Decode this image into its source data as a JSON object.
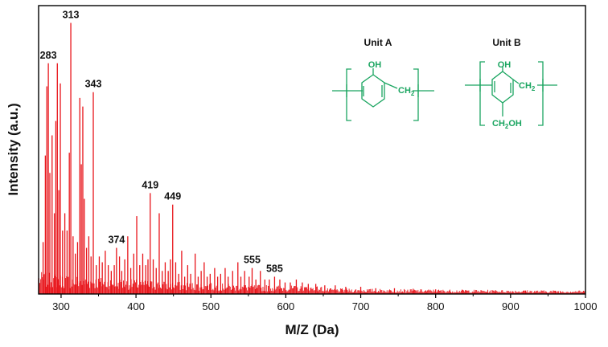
{
  "chart_data": {
    "type": "bar",
    "xlabel": "M/Z (Da)",
    "ylabel": "Intensity (a.u.)",
    "xlim": [
      270,
      1000
    ],
    "ylim": [
      0,
      1.0
    ],
    "xticks": [
      300,
      400,
      500,
      600,
      700,
      800,
      900,
      1000
    ],
    "y_tick_labels": false,
    "grid": false,
    "color": "#e8141a",
    "annotated_peaks": [
      {
        "x": 283,
        "y": 0.8,
        "label": "283"
      },
      {
        "x": 313,
        "y": 0.94,
        "label": "313"
      },
      {
        "x": 343,
        "y": 0.7,
        "label": "343"
      },
      {
        "x": 374,
        "y": 0.16,
        "label": "374"
      },
      {
        "x": 419,
        "y": 0.35,
        "label": "419"
      },
      {
        "x": 449,
        "y": 0.31,
        "label": "449"
      },
      {
        "x": 555,
        "y": 0.09,
        "label": "555"
      },
      {
        "x": 585,
        "y": 0.06,
        "label": "585"
      }
    ],
    "major_peaks": [
      {
        "x": 276,
        "y": 0.18
      },
      {
        "x": 279,
        "y": 0.48
      },
      {
        "x": 281,
        "y": 0.72
      },
      {
        "x": 285,
        "y": 0.42
      },
      {
        "x": 288,
        "y": 0.55
      },
      {
        "x": 291,
        "y": 0.28
      },
      {
        "x": 293,
        "y": 0.6
      },
      {
        "x": 295,
        "y": 0.8
      },
      {
        "x": 297,
        "y": 0.36
      },
      {
        "x": 299,
        "y": 0.73
      },
      {
        "x": 302,
        "y": 0.22
      },
      {
        "x": 305,
        "y": 0.28
      },
      {
        "x": 308,
        "y": 0.22
      },
      {
        "x": 311,
        "y": 0.49
      },
      {
        "x": 316,
        "y": 0.2
      },
      {
        "x": 319,
        "y": 0.14
      },
      {
        "x": 322,
        "y": 0.18
      },
      {
        "x": 325,
        "y": 0.68
      },
      {
        "x": 327,
        "y": 0.45
      },
      {
        "x": 329,
        "y": 0.65
      },
      {
        "x": 331,
        "y": 0.33
      },
      {
        "x": 334,
        "y": 0.16
      },
      {
        "x": 337,
        "y": 0.2
      },
      {
        "x": 340,
        "y": 0.13
      },
      {
        "x": 347,
        "y": 0.1
      },
      {
        "x": 351,
        "y": 0.13
      },
      {
        "x": 355,
        "y": 0.11
      },
      {
        "x": 359,
        "y": 0.15
      },
      {
        "x": 363,
        "y": 0.1
      },
      {
        "x": 367,
        "y": 0.08
      },
      {
        "x": 371,
        "y": 0.1
      },
      {
        "x": 378,
        "y": 0.13
      },
      {
        "x": 381,
        "y": 0.08
      },
      {
        "x": 385,
        "y": 0.12
      },
      {
        "x": 389,
        "y": 0.2
      },
      {
        "x": 393,
        "y": 0.09
      },
      {
        "x": 397,
        "y": 0.14
      },
      {
        "x": 401,
        "y": 0.27
      },
      {
        "x": 405,
        "y": 0.1
      },
      {
        "x": 409,
        "y": 0.14
      },
      {
        "x": 413,
        "y": 0.1
      },
      {
        "x": 416,
        "y": 0.12
      },
      {
        "x": 423,
        "y": 0.12
      },
      {
        "x": 427,
        "y": 0.09
      },
      {
        "x": 431,
        "y": 0.28
      },
      {
        "x": 435,
        "y": 0.08
      },
      {
        "x": 439,
        "y": 0.11
      },
      {
        "x": 443,
        "y": 0.08
      },
      {
        "x": 446,
        "y": 0.12
      },
      {
        "x": 453,
        "y": 0.11
      },
      {
        "x": 457,
        "y": 0.07
      },
      {
        "x": 461,
        "y": 0.15
      },
      {
        "x": 465,
        "y": 0.06
      },
      {
        "x": 469,
        "y": 0.1
      },
      {
        "x": 473,
        "y": 0.07
      },
      {
        "x": 479,
        "y": 0.14
      },
      {
        "x": 483,
        "y": 0.06
      },
      {
        "x": 487,
        "y": 0.08
      },
      {
        "x": 491,
        "y": 0.11
      },
      {
        "x": 495,
        "y": 0.06
      },
      {
        "x": 499,
        "y": 0.07
      },
      {
        "x": 505,
        "y": 0.09
      },
      {
        "x": 509,
        "y": 0.06
      },
      {
        "x": 513,
        "y": 0.07
      },
      {
        "x": 519,
        "y": 0.09
      },
      {
        "x": 523,
        "y": 0.06
      },
      {
        "x": 529,
        "y": 0.08
      },
      {
        "x": 536,
        "y": 0.11
      },
      {
        "x": 540,
        "y": 0.06
      },
      {
        "x": 545,
        "y": 0.08
      },
      {
        "x": 551,
        "y": 0.06
      },
      {
        "x": 560,
        "y": 0.05
      },
      {
        "x": 566,
        "y": 0.08
      },
      {
        "x": 572,
        "y": 0.05
      },
      {
        "x": 578,
        "y": 0.05
      },
      {
        "x": 592,
        "y": 0.05
      },
      {
        "x": 599,
        "y": 0.04
      },
      {
        "x": 606,
        "y": 0.04
      },
      {
        "x": 614,
        "y": 0.05
      },
      {
        "x": 622,
        "y": 0.04
      },
      {
        "x": 630,
        "y": 0.035
      },
      {
        "x": 640,
        "y": 0.035
      },
      {
        "x": 652,
        "y": 0.03
      },
      {
        "x": 666,
        "y": 0.03
      },
      {
        "x": 680,
        "y": 0.025
      },
      {
        "x": 700,
        "y": 0.025
      },
      {
        "x": 720,
        "y": 0.02
      },
      {
        "x": 745,
        "y": 0.02
      },
      {
        "x": 770,
        "y": 0.018
      },
      {
        "x": 800,
        "y": 0.016
      },
      {
        "x": 840,
        "y": 0.014
      },
      {
        "x": 880,
        "y": 0.013
      },
      {
        "x": 920,
        "y": 0.012
      },
      {
        "x": 960,
        "y": 0.011
      }
    ]
  },
  "structures": {
    "color": "#1aa560",
    "unit_a": {
      "title": "Unit A",
      "oh": "OH",
      "ch2": "CH",
      "sub2": "2"
    },
    "unit_b": {
      "title": "Unit B",
      "oh": "OH",
      "ch2": "CH",
      "sub2": "2",
      "ch2oh": "CH",
      "ch2oh_sub": "2",
      "ch2oh_tail": "OH"
    }
  }
}
